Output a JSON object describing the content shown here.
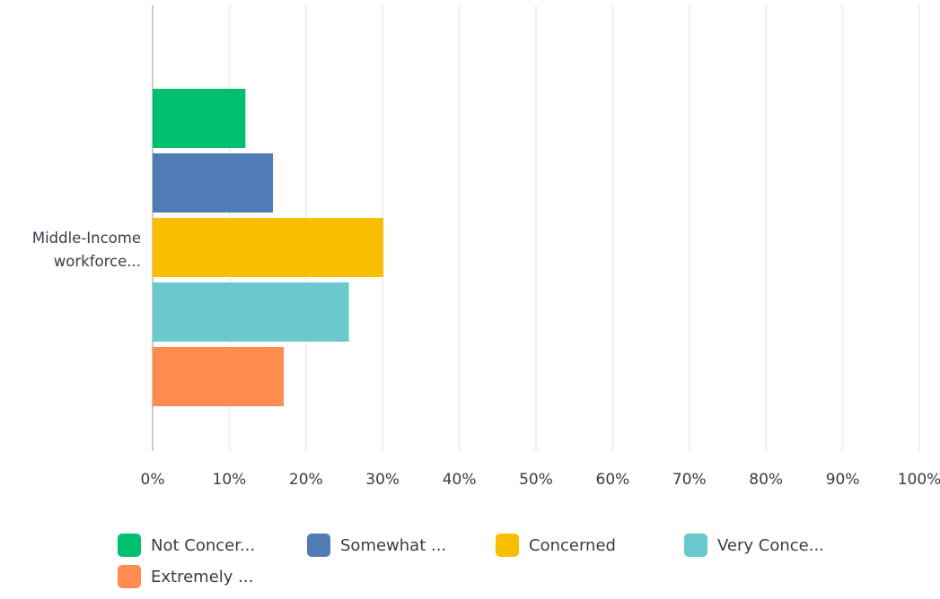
{
  "chart_data": {
    "type": "bar",
    "orientation": "horizontal",
    "categories": [
      "Middle-Income workforce..."
    ],
    "category_label_lines": [
      "Middle-Income",
      "workforce..."
    ],
    "series": [
      {
        "name": "Not Concer...",
        "color": "#00bf6f",
        "values": [
          12.1
        ]
      },
      {
        "name": "Somewhat ...",
        "color": "#507cb6",
        "values": [
          15.7
        ]
      },
      {
        "name": "Concerned",
        "color": "#f9be00",
        "values": [
          30.1
        ]
      },
      {
        "name": "Very Conce...",
        "color": "#6bc8cd",
        "values": [
          25.6
        ]
      },
      {
        "name": "Extremely ...",
        "color": "#ff8b4f",
        "values": [
          17.1
        ]
      }
    ],
    "x_ticks": [
      "0%",
      "10%",
      "20%",
      "30%",
      "40%",
      "50%",
      "60%",
      "70%",
      "80%",
      "90%",
      "100%"
    ],
    "xlim": [
      0,
      100
    ],
    "grid": true,
    "legend_position": "bottom"
  }
}
